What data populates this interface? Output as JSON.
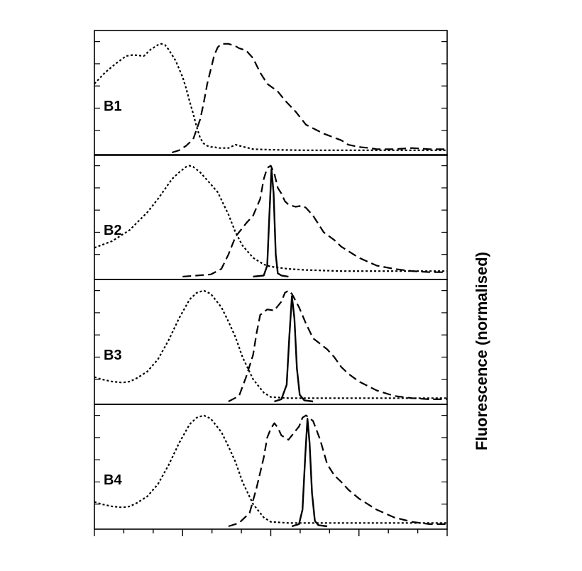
{
  "chart_data": {
    "type": "line",
    "ylabel": "Fluorescence (normalised)",
    "xlabel": "",
    "colors": {
      "axis": "#000000",
      "line": "#000000",
      "background": "#ffffff"
    },
    "xlim": [
      0,
      100
    ],
    "ylim": [
      0,
      1.1
    ],
    "x_tick_count": 12,
    "panels": [
      {
        "label": "B1",
        "series": [
          {
            "style": "dotted",
            "x": [
              0,
              3,
              6,
              9,
              11,
              14,
              16,
              18,
              19,
              20,
              21,
              23,
              25,
              26,
              27,
              28,
              29,
              30,
              31,
              32,
              33,
              34,
              35,
              38,
              40,
              45,
              50,
              60,
              70,
              80,
              90,
              100
            ],
            "y": [
              0.62,
              0.72,
              0.8,
              0.87,
              0.88,
              0.87,
              0.93,
              0.97,
              0.98,
              0.97,
              0.93,
              0.83,
              0.68,
              0.58,
              0.46,
              0.35,
              0.23,
              0.13,
              0.08,
              0.06,
              0.05,
              0.05,
              0.04,
              0.04,
              0.07,
              0.03,
              0.025,
              0.02,
              0.02,
              0.02,
              0.02,
              0.02
            ]
          },
          {
            "style": "dashed",
            "x": [
              22,
              24,
              26,
              28,
              30,
              31,
              32,
              34,
              35,
              36,
              38,
              40,
              41,
              42,
              43,
              45,
              47,
              49,
              52,
              54,
              57,
              60,
              65,
              70,
              72,
              75,
              78,
              80,
              85,
              90,
              95,
              100
            ],
            "y": [
              0.0,
              0.02,
              0.06,
              0.12,
              0.3,
              0.45,
              0.62,
              0.88,
              0.95,
              0.98,
              0.98,
              0.96,
              0.94,
              0.93,
              0.92,
              0.85,
              0.72,
              0.62,
              0.55,
              0.47,
              0.37,
              0.25,
              0.17,
              0.11,
              0.07,
              0.05,
              0.04,
              0.03,
              0.03,
              0.04,
              0.03,
              0.03
            ]
          }
        ]
      },
      {
        "label": "B2",
        "series": [
          {
            "style": "dotted",
            "x": [
              0,
              5,
              10,
              15,
              18,
              20,
              22,
              24,
              26,
              27,
              28,
              30,
              32,
              35,
              38,
              40,
              42,
              45,
              48,
              50,
              55,
              60,
              70,
              80,
              90,
              100
            ],
            "y": [
              0.26,
              0.32,
              0.42,
              0.58,
              0.7,
              0.79,
              0.88,
              0.94,
              0.99,
              1.0,
              0.99,
              0.94,
              0.87,
              0.76,
              0.56,
              0.4,
              0.28,
              0.17,
              0.11,
              0.09,
              0.07,
              0.06,
              0.05,
              0.05,
              0.05,
              0.05
            ]
          },
          {
            "style": "dashed",
            "x": [
              25,
              33,
              36,
              38,
              40,
              42,
              43,
              45,
              47,
              48,
              49,
              50,
              51,
              52,
              53,
              54,
              55,
              57,
              59,
              60,
              62,
              65,
              68,
              70,
              75,
              80,
              85,
              90,
              95,
              100
            ],
            "y": [
              0.0,
              0.02,
              0.07,
              0.2,
              0.36,
              0.44,
              0.48,
              0.55,
              0.7,
              0.88,
              0.98,
              1.0,
              0.93,
              0.8,
              0.75,
              0.68,
              0.65,
              0.63,
              0.64,
              0.62,
              0.55,
              0.4,
              0.33,
              0.27,
              0.17,
              0.1,
              0.07,
              0.05,
              0.04,
              0.04
            ]
          },
          {
            "style": "solid",
            "x": [
              45,
              48,
              49,
              49.6,
              50.2,
              50.8,
              51.4,
              52,
              53,
              55
            ],
            "y": [
              0.0,
              0.01,
              0.1,
              0.55,
              0.97,
              0.75,
              0.2,
              0.03,
              0.01,
              0.0
            ]
          }
        ]
      },
      {
        "label": "B3",
        "series": [
          {
            "style": "dotted",
            "x": [
              0,
              2,
              5,
              8,
              10,
              12,
              15,
              18,
              21,
              24,
              27,
              29,
              31,
              33,
              36,
              38,
              40,
              42,
              45,
              48,
              50,
              55,
              60,
              70,
              80,
              90,
              100
            ],
            "y": [
              0.22,
              0.2,
              0.18,
              0.17,
              0.18,
              0.21,
              0.27,
              0.38,
              0.55,
              0.75,
              0.92,
              0.98,
              1.0,
              0.97,
              0.85,
              0.72,
              0.58,
              0.4,
              0.2,
              0.08,
              0.04,
              0.03,
              0.03,
              0.03,
              0.03,
              0.03,
              0.03
            ]
          },
          {
            "style": "dashed",
            "x": [
              38,
              41,
              43,
              45,
              46,
              47,
              49,
              51,
              52,
              53,
              54,
              55,
              56,
              58,
              60,
              62,
              64,
              66,
              68,
              70,
              72,
              75,
              80,
              85,
              90,
              95,
              100
            ],
            "y": [
              0.0,
              0.05,
              0.22,
              0.42,
              0.62,
              0.78,
              0.83,
              0.82,
              0.86,
              0.9,
              0.98,
              1.0,
              0.97,
              0.85,
              0.7,
              0.57,
              0.52,
              0.47,
              0.4,
              0.31,
              0.25,
              0.18,
              0.1,
              0.05,
              0.03,
              0.02,
              0.02
            ]
          },
          {
            "style": "solid",
            "x": [
              51,
              53,
              54.5,
              55.3,
              56.0,
              56.7,
              57.4,
              58.2,
              59.5,
              62
            ],
            "y": [
              0.0,
              0.02,
              0.15,
              0.6,
              0.95,
              0.75,
              0.3,
              0.06,
              0.01,
              0.0
            ]
          }
        ]
      },
      {
        "label": "B4",
        "series": [
          {
            "style": "dotted",
            "x": [
              0,
              2,
              5,
              8,
              10,
              12,
              15,
              18,
              21,
              24,
              27,
              29,
              31,
              33,
              36,
              38,
              40,
              42,
              45,
              48,
              50,
              55,
              60,
              70,
              80,
              90,
              100
            ],
            "y": [
              0.22,
              0.2,
              0.18,
              0.17,
              0.18,
              0.21,
              0.27,
              0.38,
              0.55,
              0.75,
              0.92,
              0.98,
              1.0,
              0.97,
              0.85,
              0.72,
              0.58,
              0.4,
              0.2,
              0.08,
              0.04,
              0.03,
              0.03,
              0.03,
              0.03,
              0.03,
              0.03
            ]
          },
          {
            "style": "dashed",
            "x": [
              38,
              41,
              44,
              46,
              48,
              49,
              50,
              51,
              52,
              53,
              55,
              56,
              58,
              59,
              60,
              62,
              64,
              66,
              68,
              70,
              72,
              75,
              80,
              85,
              90,
              95,
              100
            ],
            "y": [
              0.0,
              0.03,
              0.12,
              0.35,
              0.62,
              0.8,
              0.88,
              0.93,
              0.89,
              0.82,
              0.78,
              0.82,
              0.9,
              0.98,
              1.0,
              0.95,
              0.78,
              0.56,
              0.46,
              0.4,
              0.33,
              0.25,
              0.15,
              0.08,
              0.04,
              0.02,
              0.02
            ]
          },
          {
            "style": "solid",
            "x": [
              56,
              58,
              59,
              59.8,
              60.4,
              61,
              61.7,
              62.5,
              63.5,
              66
            ],
            "y": [
              0.0,
              0.02,
              0.15,
              0.65,
              0.97,
              0.75,
              0.3,
              0.05,
              0.01,
              0.0
            ]
          }
        ]
      }
    ]
  }
}
